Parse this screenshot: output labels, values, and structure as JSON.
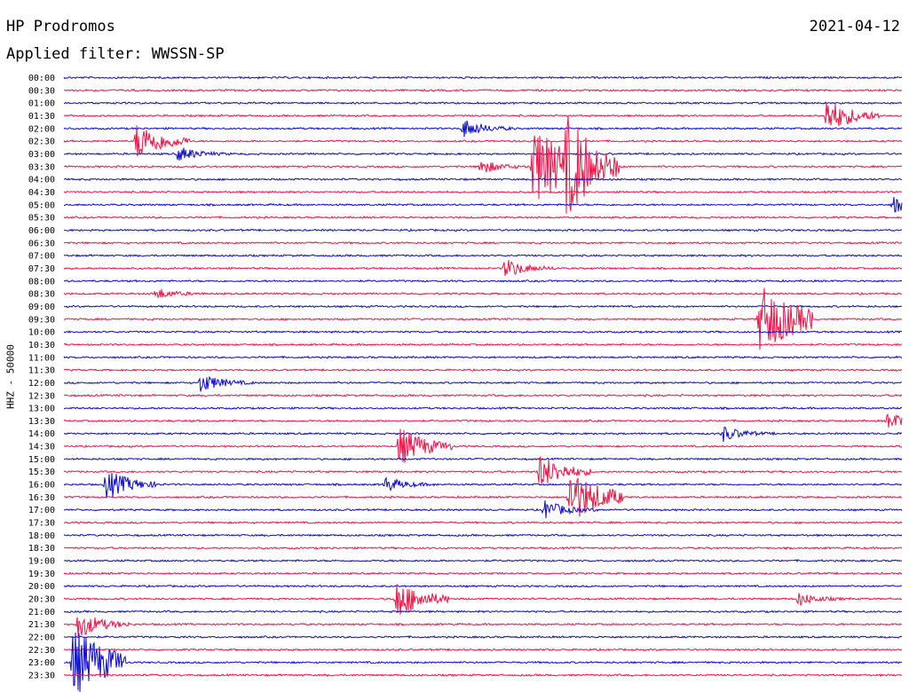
{
  "header": {
    "station": "HP Prodromos",
    "filter_label": "Applied filter: WWSSN-SP",
    "date": "2021-04-12"
  },
  "axis": {
    "ylabel": "HHZ - 50000"
  },
  "colors": {
    "even_hour_trace": "#0a0ad2",
    "half_hour_trace": "#f01446",
    "text": "#000000",
    "background": "#ffffff"
  },
  "chart_data": {
    "type": "line",
    "title": "",
    "description_kind": "helicorder",
    "rows": [
      "00:00",
      "00:30",
      "01:00",
      "01:30",
      "02:00",
      "02:30",
      "03:00",
      "03:30",
      "04:00",
      "04:30",
      "05:00",
      "05:30",
      "06:00",
      "06:30",
      "07:00",
      "07:30",
      "08:00",
      "08:30",
      "09:00",
      "09:30",
      "10:00",
      "10:30",
      "11:00",
      "11:30",
      "12:00",
      "12:30",
      "13:00",
      "13:30",
      "14:00",
      "14:30",
      "15:00",
      "15:30",
      "16:00",
      "16:30",
      "17:00",
      "17:30",
      "18:00",
      "18:30",
      "19:00",
      "19:30",
      "20:00",
      "20:30",
      "21:00",
      "21:30",
      "22:00",
      "22:30",
      "23:00",
      "23:30"
    ],
    "trace_minutes_per_row": 30,
    "x_range_minutes": [
      0,
      30
    ],
    "events": [
      {
        "row": "01:30",
        "minute": 27.3,
        "amp": 0.9
      },
      {
        "row": "02:00",
        "minute": 14.3,
        "amp": 0.5
      },
      {
        "row": "02:30",
        "minute": 2.6,
        "amp": 1.0
      },
      {
        "row": "03:00",
        "minute": 4.1,
        "amp": 0.4
      },
      {
        "row": "03:30",
        "minute": 14.9,
        "amp": 0.4
      },
      {
        "row": "03:30",
        "minute": 16.8,
        "amp": 2.0
      },
      {
        "row": "03:30",
        "minute": 18.0,
        "amp": 1.8
      },
      {
        "row": "05:00",
        "minute": 29.7,
        "amp": 0.45
      },
      {
        "row": "07:30",
        "minute": 15.8,
        "amp": 0.5
      },
      {
        "row": "08:30",
        "minute": 3.3,
        "amp": 0.3
      },
      {
        "row": "09:30",
        "minute": 24.9,
        "amp": 1.8
      },
      {
        "row": "12:00",
        "minute": 4.9,
        "amp": 0.5
      },
      {
        "row": "13:30",
        "minute": 29.5,
        "amp": 0.45
      },
      {
        "row": "14:00",
        "minute": 23.6,
        "amp": 0.4
      },
      {
        "row": "14:30",
        "minute": 12.0,
        "amp": 1.0
      },
      {
        "row": "15:30",
        "minute": 17.0,
        "amp": 0.9
      },
      {
        "row": "16:00",
        "minute": 1.5,
        "amp": 0.8
      },
      {
        "row": "16:00",
        "minute": 11.5,
        "amp": 0.4
      },
      {
        "row": "16:30",
        "minute": 18.1,
        "amp": 1.4
      },
      {
        "row": "17:00",
        "minute": 17.2,
        "amp": 0.5
      },
      {
        "row": "20:30",
        "minute": 11.9,
        "amp": 1.0
      },
      {
        "row": "20:30",
        "minute": 26.3,
        "amp": 0.35
      },
      {
        "row": "21:30",
        "minute": 0.5,
        "amp": 0.7
      },
      {
        "row": "23:00",
        "minute": 0.3,
        "amp": 1.8
      }
    ]
  }
}
